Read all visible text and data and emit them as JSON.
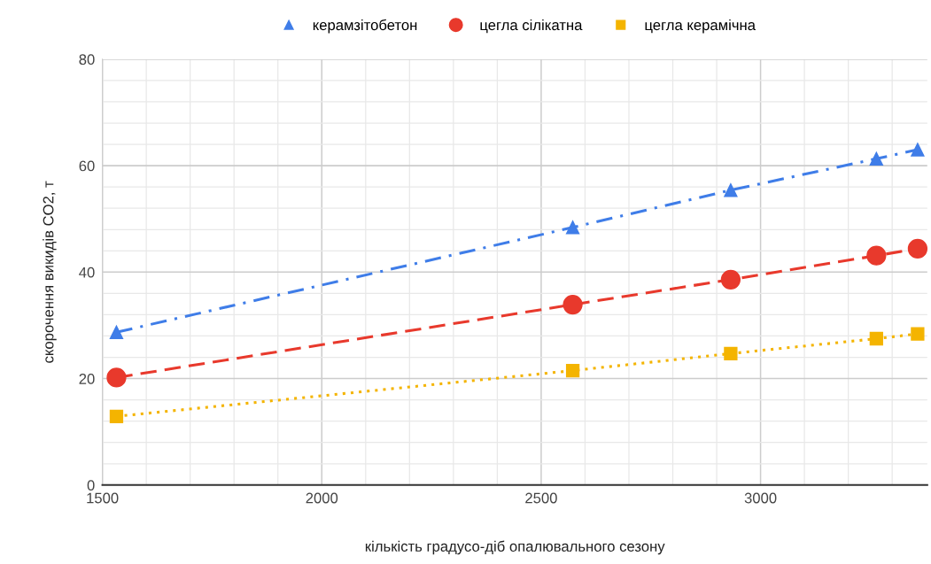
{
  "chart_data": {
    "type": "line",
    "xlabel": "кількість градусо-діб опалювального сезону",
    "ylabel": "скорочення викидів CO2, т",
    "xlim": [
      1500,
      3380
    ],
    "xticks": [
      1500,
      2000,
      2500,
      3000
    ],
    "ylim": [
      0,
      80
    ],
    "yticks": [
      0,
      20,
      40,
      60,
      80
    ],
    "grid": true,
    "legend": "top",
    "series": [
      {
        "name": "керамзітобетон",
        "color": "#3f7de8",
        "marker": "triangle",
        "line_style": "dashdot",
        "x": [
          1532,
          2572,
          2932,
          3264,
          3358
        ],
        "values": [
          28.7,
          48.4,
          55.4,
          61.3,
          63.0
        ]
      },
      {
        "name": "цегла сілікатна",
        "color": "#e8392c",
        "marker": "circle",
        "line_style": "dashed",
        "x": [
          1532,
          2572,
          2932,
          3264,
          3358
        ],
        "values": [
          20.2,
          33.9,
          38.6,
          43.1,
          44.4
        ]
      },
      {
        "name": "цегла керамічна",
        "color": "#f4b400",
        "marker": "square",
        "line_style": "dotted",
        "x": [
          1532,
          2572,
          2932,
          3264,
          3358
        ],
        "values": [
          12.9,
          21.5,
          24.7,
          27.5,
          28.4
        ]
      }
    ]
  }
}
